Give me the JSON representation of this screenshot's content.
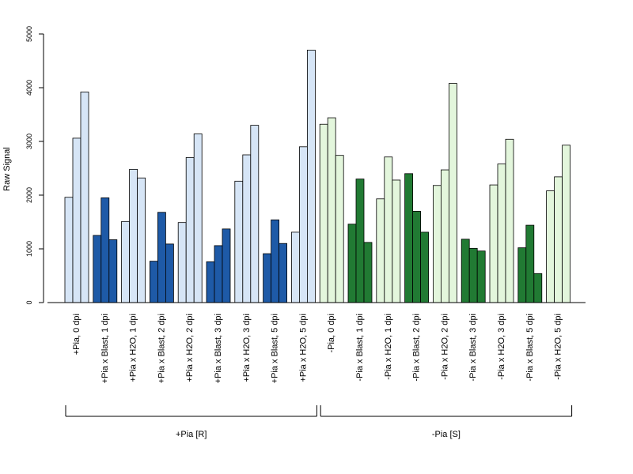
{
  "chart_data": {
    "type": "bar",
    "title": "",
    "xlabel": "",
    "ylabel": "Raw Signal",
    "ylim": [
      0,
      5000
    ],
    "yticks": [
      0,
      1000,
      2000,
      3000,
      4000,
      5000
    ],
    "grid": false,
    "legend": "none",
    "colors": {
      "pia_h2o": "#d6e5f6",
      "pia_blast": "#1e5aa7",
      "nopia_h2o": "#e3f6dc",
      "nopia_blast": "#217a33"
    },
    "categories": [
      {
        "label": "+Pia, 0 dpi",
        "color_key": "pia_h2o",
        "values": [
          1960,
          3060,
          3920
        ]
      },
      {
        "label": "+Pia x Blast, 1 dpi",
        "color_key": "pia_blast",
        "values": [
          1250,
          1950,
          1170
        ]
      },
      {
        "label": "+Pia x H2O, 1 dpi",
        "color_key": "pia_h2o",
        "values": [
          1510,
          2480,
          2320
        ]
      },
      {
        "label": "+Pia x Blast, 2 dpi",
        "color_key": "pia_blast",
        "values": [
          770,
          1680,
          1090
        ]
      },
      {
        "label": "+Pia x H2O, 2 dpi",
        "color_key": "pia_h2o",
        "values": [
          1490,
          2700,
          3140
        ]
      },
      {
        "label": "+Pia x Blast, 3 dpi",
        "color_key": "pia_blast",
        "values": [
          760,
          1060,
          1370
        ]
      },
      {
        "label": "+Pia x H2O, 3 dpi",
        "color_key": "pia_h2o",
        "values": [
          2260,
          2750,
          3300
        ]
      },
      {
        "label": "+Pia x Blast, 5 dpi",
        "color_key": "pia_blast",
        "values": [
          910,
          1540,
          1100
        ]
      },
      {
        "label": "+Pia x H2O, 5 dpi",
        "color_key": "pia_h2o",
        "values": [
          1310,
          2900,
          4700
        ]
      },
      {
        "label": "-Pia, 0 dpi",
        "color_key": "nopia_h2o",
        "values": [
          3320,
          3440,
          2740
        ]
      },
      {
        "label": "-Pia x Blast, 1 dpi",
        "color_key": "nopia_blast",
        "values": [
          1460,
          2300,
          1120
        ]
      },
      {
        "label": "-Pia x H2O, 1 dpi",
        "color_key": "nopia_h2o",
        "values": [
          1930,
          2710,
          2280
        ]
      },
      {
        "label": "-Pia x Blast, 2 dpi",
        "color_key": "nopia_blast",
        "values": [
          2400,
          1700,
          1310
        ]
      },
      {
        "label": "-Pia x H2O, 2 dpi",
        "color_key": "nopia_h2o",
        "values": [
          2180,
          2470,
          4080
        ]
      },
      {
        "label": "-Pia x Blast, 3 dpi",
        "color_key": "nopia_blast",
        "values": [
          1180,
          1010,
          960
        ]
      },
      {
        "label": "-Pia x H2O, 3 dpi",
        "color_key": "nopia_h2o",
        "values": [
          2190,
          2580,
          3040
        ]
      },
      {
        "label": "-Pia x Blast, 5 dpi",
        "color_key": "nopia_blast",
        "values": [
          1020,
          1440,
          540
        ]
      },
      {
        "label": "-Pia x H2O, 5 dpi",
        "color_key": "nopia_h2o",
        "values": [
          2080,
          2340,
          2930
        ]
      }
    ],
    "groups": [
      {
        "label": "+Pia [R]",
        "from": 0,
        "to": 8
      },
      {
        "label": "-Pia [S]",
        "from": 9,
        "to": 17
      }
    ]
  }
}
